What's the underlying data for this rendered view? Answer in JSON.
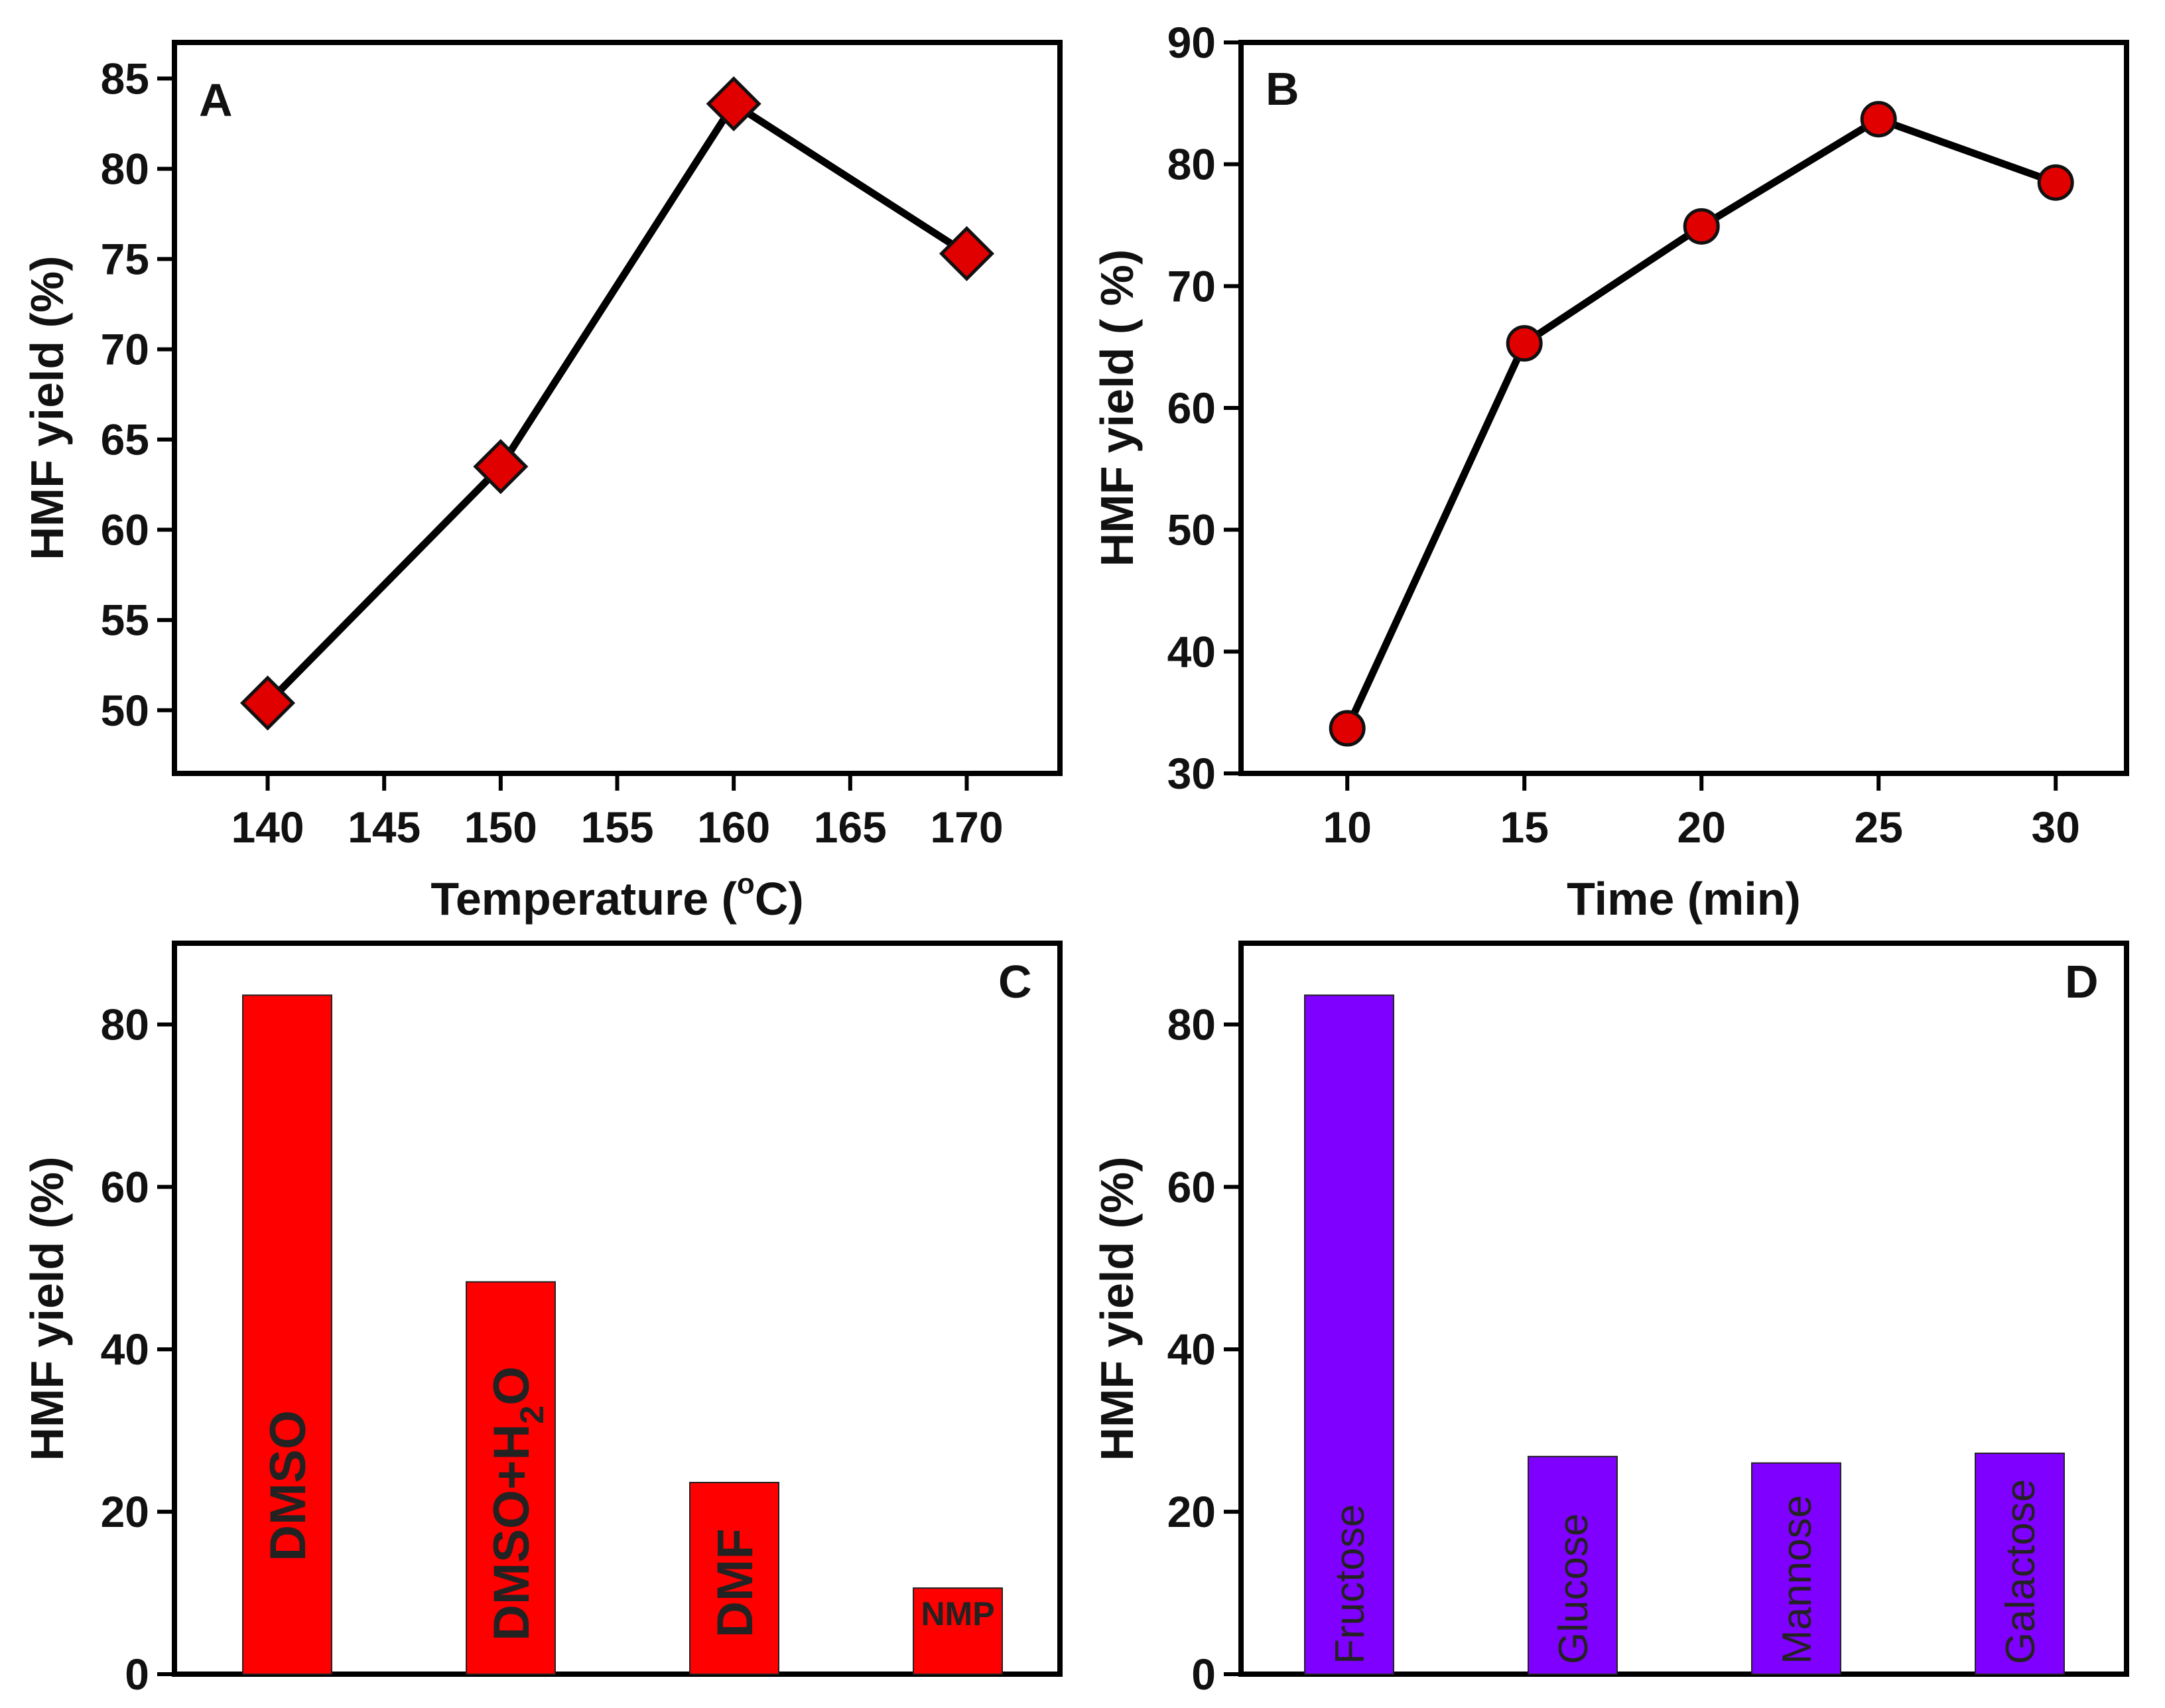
{
  "chart_data": [
    {
      "panel": "A",
      "type": "line",
      "marker": "diamond",
      "xlabel_main": "Temperature (",
      "xlabel_sup": "o",
      "xlabel_end": "C)",
      "ylabel": "HMF yield (%)",
      "xlim": [
        136,
        174
      ],
      "ylim": [
        46.5,
        87
      ],
      "xticks": [
        140,
        145,
        150,
        155,
        160,
        165,
        170
      ],
      "yticks": [
        50,
        55,
        60,
        65,
        70,
        75,
        80,
        85
      ],
      "x": [
        140,
        150,
        160,
        170
      ],
      "y": [
        50.4,
        63.5,
        83.6,
        75.3
      ],
      "colors": {
        "marker": "#e00000",
        "line": "#000000"
      }
    },
    {
      "panel": "B",
      "type": "line",
      "marker": "circle",
      "xlabel": "Time (min)",
      "ylabel": "HMF yield ( %)",
      "xlim": [
        7,
        32
      ],
      "ylim": [
        30,
        90
      ],
      "xticks": [
        10,
        15,
        20,
        25,
        30
      ],
      "yticks": [
        30,
        40,
        50,
        60,
        70,
        80,
        90
      ],
      "x": [
        10,
        15,
        20,
        25,
        30
      ],
      "y": [
        33.7,
        65.3,
        74.9,
        83.7,
        78.5
      ],
      "colors": {
        "marker": "#e00000",
        "line": "#000000"
      }
    },
    {
      "panel": "C",
      "type": "bar",
      "ylabel": "HMF yield (%)",
      "ylim": [
        0,
        90
      ],
      "yticks": [
        0,
        20,
        40,
        60,
        80
      ],
      "categories": [
        "DMSO",
        "DMSO+H",
        "DMF",
        "NMP"
      ],
      "category_subscripts": [
        "",
        "2",
        "",
        ""
      ],
      "category_suffixes": [
        "",
        "O",
        "",
        ""
      ],
      "values": [
        83.6,
        48.3,
        23.6,
        10.6
      ],
      "color": "#ff0000"
    },
    {
      "panel": "D",
      "type": "bar",
      "ylabel": "HMF yield (%)",
      "ylim": [
        0,
        90
      ],
      "yticks": [
        0,
        20,
        40,
        60,
        80
      ],
      "categories": [
        "Fructose",
        "Glucose",
        "Mannose",
        "Galactose"
      ],
      "values": [
        83.6,
        26.8,
        26.0,
        27.2
      ],
      "color": "#8000ff"
    }
  ]
}
